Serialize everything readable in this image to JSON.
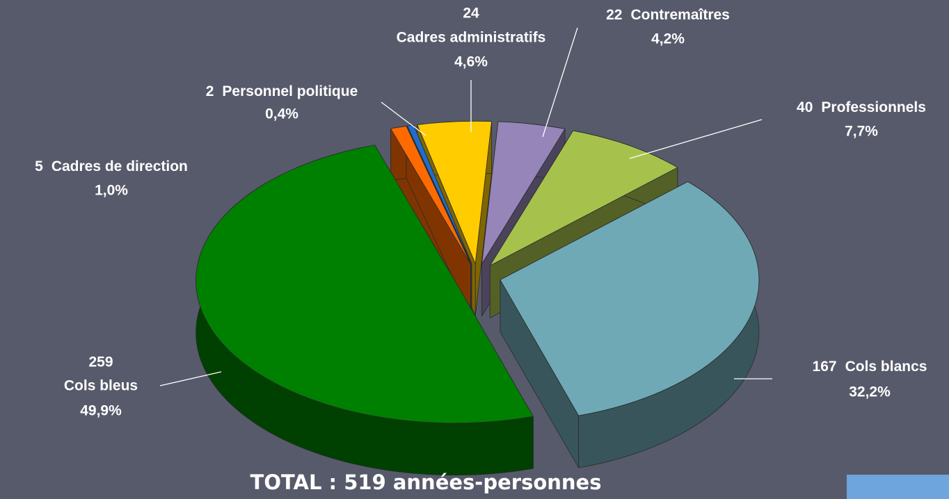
{
  "chart_data": {
    "type": "pie3d",
    "title": "TOTAL : 519 années-personnes",
    "categories": [
      "Cadres de direction",
      "Personnel politique",
      "Cadres administratifs",
      "Contremaîtres",
      "Professionnels",
      "Cols blancs",
      "Cols bleus"
    ],
    "counts": [
      5,
      2,
      24,
      22,
      40,
      167,
      259
    ],
    "values": [
      1.0,
      0.4,
      4.6,
      4.2,
      7.7,
      32.2,
      49.9
    ],
    "value_labels": [
      "1,0%",
      "0,4%",
      "4,6%",
      "4,2%",
      "7,7%",
      "32,2%",
      "49,9%"
    ],
    "colors": [
      "#ff6a00",
      "#1f6fc9",
      "#ffcc00",
      "#9585b8",
      "#a6c24c",
      "#6fa9b6",
      "#008000"
    ]
  }
}
